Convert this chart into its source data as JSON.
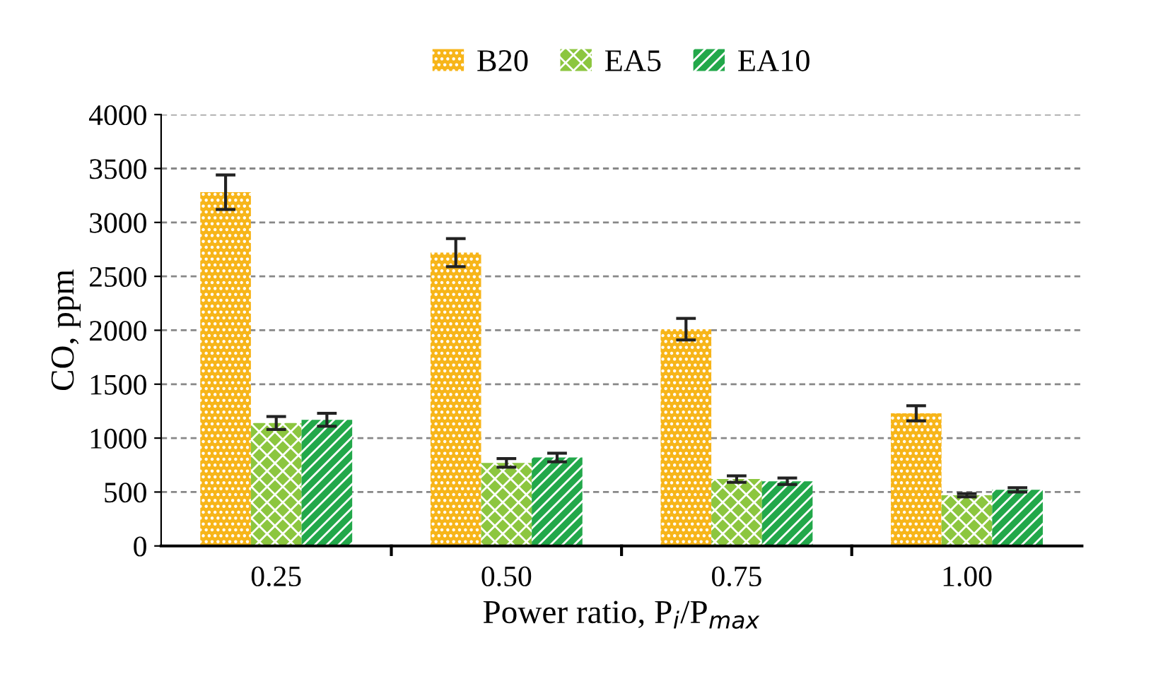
{
  "chart_data": {
    "type": "bar",
    "xlabel": "Power ratio, P$_{i}$/P$_{max}$",
    "ylabel": "CO, ppm",
    "categories": [
      "0.25",
      "0.50",
      "0.75",
      "1.00"
    ],
    "series": [
      {
        "name": "B20",
        "color": "#f7b519",
        "values": [
          3280,
          2720,
          2010,
          1230
        ],
        "errors": [
          160,
          130,
          100,
          70
        ]
      },
      {
        "name": "EA5",
        "color": "#8cc63f",
        "values": [
          1140,
          770,
          620,
          470
        ],
        "errors": [
          60,
          40,
          30,
          15
        ]
      },
      {
        "name": "EA10",
        "color": "#22a84a",
        "values": [
          1170,
          820,
          600,
          520
        ],
        "errors": [
          60,
          40,
          30,
          20
        ]
      }
    ],
    "ylim": [
      0,
      4000
    ],
    "yticks": [
      0,
      500,
      1000,
      1500,
      2000,
      2500,
      3000,
      3500,
      4000
    ],
    "grid": "y",
    "legend": "top"
  }
}
